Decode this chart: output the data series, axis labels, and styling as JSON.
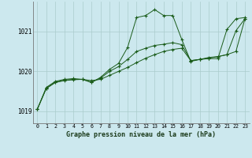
{
  "title": "Graphe pression niveau de la mer (hPa)",
  "bg_color": "#cce8ee",
  "grid_color": "#aacccc",
  "line_color": "#1a5c1a",
  "xlim": [
    -0.5,
    23.5
  ],
  "ylim": [
    1018.7,
    1021.75
  ],
  "yticks": [
    1019,
    1020,
    1021
  ],
  "xticks": [
    0,
    1,
    2,
    3,
    4,
    5,
    6,
    7,
    8,
    9,
    10,
    11,
    12,
    13,
    14,
    15,
    16,
    17,
    18,
    19,
    20,
    21,
    22,
    23
  ],
  "series1": [
    1019.05,
    1019.6,
    1019.75,
    1019.8,
    1019.82,
    1019.8,
    1019.72,
    1019.85,
    1020.05,
    1020.2,
    1020.6,
    1021.35,
    1021.4,
    1021.55,
    1021.4,
    1021.4,
    1020.8,
    1020.25,
    1020.3,
    1020.32,
    1020.32,
    1021.05,
    1021.32,
    1021.35
  ],
  "series2": [
    1019.05,
    1019.58,
    1019.73,
    1019.78,
    1019.8,
    1019.8,
    1019.73,
    1019.83,
    1020.0,
    1020.12,
    1020.3,
    1020.5,
    1020.58,
    1020.65,
    1020.68,
    1020.72,
    1020.67,
    1020.27,
    1020.3,
    1020.35,
    1020.37,
    1020.42,
    1020.5,
    1021.32
  ],
  "series3": [
    1019.05,
    1019.57,
    1019.72,
    1019.77,
    1019.79,
    1019.8,
    1019.77,
    1019.8,
    1019.9,
    1020.0,
    1020.1,
    1020.22,
    1020.33,
    1020.42,
    1020.5,
    1020.55,
    1020.58,
    1020.27,
    1020.3,
    1020.33,
    1020.37,
    1020.42,
    1021.02,
    1021.32
  ]
}
